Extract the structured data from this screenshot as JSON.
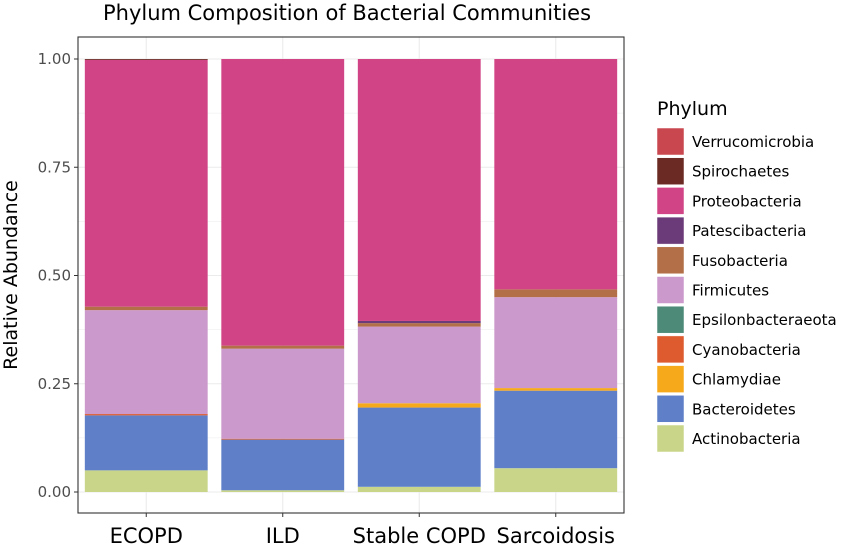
{
  "chart_data": {
    "type": "bar",
    "stacked": true,
    "title": "Phylum Composition of Bacterial Communities",
    "xlabel": "",
    "ylabel": "Relative Abundance",
    "ylim": [
      0,
      1
    ],
    "yticks": [
      "0.00",
      "0.25",
      "0.50",
      "0.75",
      "1.00"
    ],
    "categories": [
      "ECOPD",
      "ILD",
      "Stable COPD",
      "Sarcoidosis"
    ],
    "grid": true,
    "legend_title": "Phylum",
    "legend_position": "right",
    "series": [
      {
        "name": "Verrucomicrobia",
        "color": "#c9474f",
        "values": [
          0.0,
          0.0,
          0.0,
          0.0
        ]
      },
      {
        "name": "Spirochaetes",
        "color": "#6b2a24",
        "values": [
          0.002,
          0.0,
          0.0,
          0.0
        ]
      },
      {
        "name": "Proteobacteria",
        "color": "#d14586",
        "values": [
          0.57,
          0.662,
          0.605,
          0.532
        ]
      },
      {
        "name": "Patescibacteria",
        "color": "#6b3a78",
        "values": [
          0.0,
          0.0,
          0.005,
          0.0
        ]
      },
      {
        "name": "Fusobacteria",
        "color": "#b36f47",
        "values": [
          0.008,
          0.007,
          0.008,
          0.018
        ]
      },
      {
        "name": "Firmicutes",
        "color": "#cc99cc",
        "values": [
          0.24,
          0.208,
          0.177,
          0.21
        ]
      },
      {
        "name": "Epsilonbacteraeota",
        "color": "#4d8a78",
        "values": [
          0.0,
          0.0,
          0.0,
          0.0
        ]
      },
      {
        "name": "Cyanobacteria",
        "color": "#dd5b2e",
        "values": [
          0.003,
          0.002,
          0.0,
          0.0
        ]
      },
      {
        "name": "Chlamydiae",
        "color": "#f7a91c",
        "values": [
          0.0,
          0.0,
          0.01,
          0.006
        ]
      },
      {
        "name": "Bacteroidetes",
        "color": "#5f80c8",
        "values": [
          0.127,
          0.117,
          0.183,
          0.179
        ]
      },
      {
        "name": "Actinobacteria",
        "color": "#c9d68a",
        "values": [
          0.05,
          0.004,
          0.012,
          0.055
        ]
      }
    ]
  }
}
